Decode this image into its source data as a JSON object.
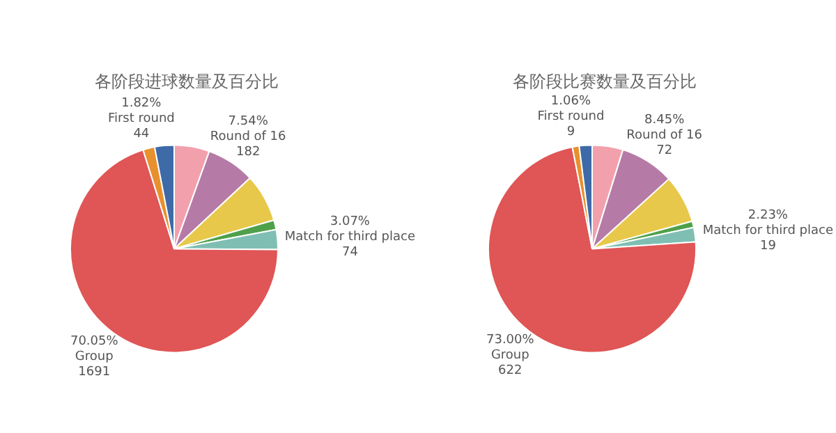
{
  "chart_data": [
    {
      "type": "pie",
      "title": "各阶段进球数量及百分比",
      "categories": [
        null,
        "Round of 16",
        null,
        null,
        "Match for third place",
        "Group",
        "First round",
        null
      ],
      "values": [
        5.5,
        7.54,
        7.5,
        1.5,
        3.07,
        70.05,
        1.82,
        3.02
      ],
      "colors": [
        "#f3a0ad",
        "#b57ba6",
        "#e8c84a",
        "#4fa04a",
        "#7fbfb3",
        "#e05555",
        "#e8902e",
        "#3f6aa8"
      ],
      "value_labels": [
        null,
        "7.54%\n182",
        null,
        null,
        "3.07%\n74",
        "70.05%\n1691",
        "1.82%\n44",
        null
      ],
      "legend": false
    },
    {
      "type": "pie",
      "title": "各阶段比赛数量及百分比",
      "categories": [
        null,
        "Round of 16",
        null,
        null,
        "Match for third place",
        "Group",
        "First round",
        null
      ],
      "values": [
        4.8,
        8.45,
        7.46,
        1,
        2.23,
        73.0,
        1.06,
        2
      ],
      "colors": [
        "#f3a0ad",
        "#b57ba6",
        "#e8c84a",
        "#4fa04a",
        "#7fbfb3",
        "#e05555",
        "#e8902e",
        "#3f6aa8"
      ],
      "value_labels": [
        null,
        "8.45%\n72",
        null,
        null,
        "2.23%\n19",
        "73.00%\n622",
        "1.06%\n9",
        null
      ],
      "legend": false
    }
  ]
}
